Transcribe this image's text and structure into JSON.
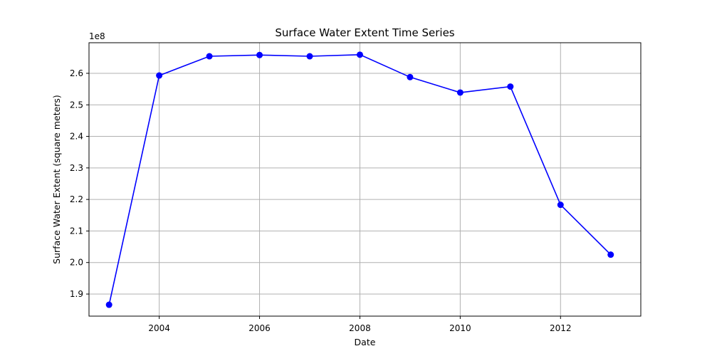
{
  "chart_data": {
    "type": "line",
    "title": "Surface Water Extent Time Series",
    "xlabel": "Date",
    "ylabel": "Surface Water Extent (square meters)",
    "y_scale_label": "1e8",
    "x_ticks": [
      "2004",
      "2006",
      "2008",
      "2010",
      "2012"
    ],
    "y_ticks": [
      "1.9",
      "2.0",
      "2.1",
      "2.2",
      "2.3",
      "2.4",
      "2.5",
      "2.6"
    ],
    "y_tick_values": [
      1.9,
      2.0,
      2.1,
      2.2,
      2.3,
      2.4,
      2.5,
      2.6
    ],
    "x_tick_values": [
      2004,
      2006,
      2008,
      2010,
      2012
    ],
    "xlim": [
      2002.6,
      2013.6
    ],
    "ylim": [
      1.83,
      2.697
    ],
    "grid": true,
    "series": [
      {
        "color": "#0000ff",
        "x": [
          2003,
          2004,
          2005,
          2006,
          2007,
          2008,
          2009,
          2010,
          2011,
          2012,
          2013
        ],
        "values": [
          1.866,
          2.593,
          2.654,
          2.658,
          2.654,
          2.659,
          2.588,
          2.539,
          2.558,
          2.183,
          2.025
        ]
      }
    ]
  }
}
